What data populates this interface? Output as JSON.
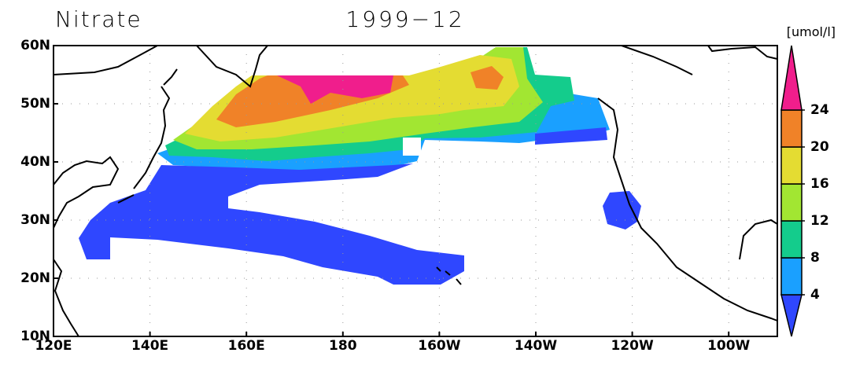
{
  "title": "Nitrate",
  "date": "1999−12",
  "unit": "[umol/l]",
  "lat_labels": [
    "60N",
    "50N",
    "40N",
    "30N",
    "20N",
    "10N"
  ],
  "lon_labels": [
    "120E",
    "140E",
    "160E",
    "180",
    "160W",
    "140W",
    "120W",
    "100W"
  ],
  "colorbar": {
    "levels": [
      4,
      8,
      12,
      16,
      20,
      24
    ],
    "colors": [
      "#2f47ff",
      "#1aa0ff",
      "#14cc8c",
      "#a2e632",
      "#e4dc32",
      "#f08228",
      "#f01e8c"
    ]
  }
}
